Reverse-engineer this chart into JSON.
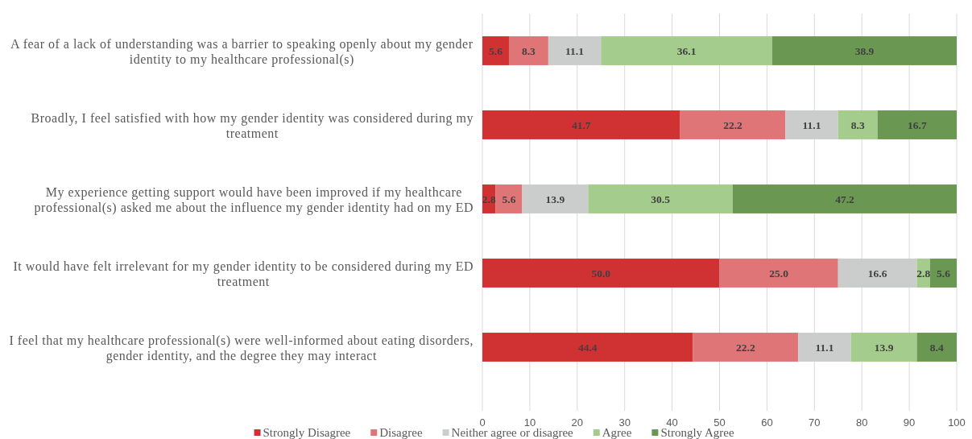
{
  "chart_data": {
    "type": "bar",
    "orientation": "horizontal",
    "stacked": true,
    "categories": [
      "A fear of a lack of understanding was a barrier to speaking openly about my gender identity to my healthcare professional(s)",
      "Broadly, I feel satisfied with how my gender identity was considered during my treatment",
      "My experience getting support would have been improved if my healthcare professional(s) asked me about the influence my gender identity had on my ED",
      "It would have felt irrelevant for my gender identity to be considered during my ED treatment",
      "I feel that my healthcare professional(s) were well-informed about eating disorders, gender identity, and the degree they may interact"
    ],
    "series": [
      {
        "name": "Strongly Disagree",
        "color": "#d03234",
        "values": [
          5.6,
          41.7,
          2.8,
          50.0,
          44.4
        ],
        "value_labels": [
          "5.6",
          "41.7",
          "2.8",
          "50.0",
          "44.4"
        ]
      },
      {
        "name": "Disagree",
        "color": "#e07577",
        "values": [
          8.3,
          22.2,
          5.6,
          25.0,
          22.2
        ],
        "value_labels": [
          "8.3",
          "22.2",
          "5.6",
          "25.0",
          "22.2"
        ]
      },
      {
        "name": "Neither agree or disagree",
        "color": "#cbcdcd",
        "values": [
          11.1,
          11.1,
          13.9,
          16.6,
          11.1
        ],
        "value_labels": [
          "11.1",
          "11.1",
          "13.9",
          "16.6",
          "11.1"
        ]
      },
      {
        "name": "Agree",
        "color": "#a3cc8d",
        "values": [
          36.1,
          8.3,
          30.5,
          2.8,
          13.9
        ],
        "value_labels": [
          "36.1",
          "8.3",
          "30.5",
          "2.8",
          "13.9"
        ]
      },
      {
        "name": "Strongly Agree",
        "color": "#6a9853",
        "values": [
          38.9,
          16.7,
          47.2,
          5.6,
          8.4
        ],
        "value_labels": [
          "38.9",
          "16.7",
          "47.2",
          "5.6",
          "8.4"
        ]
      }
    ],
    "xlim": [
      0,
      100
    ],
    "xticks": [
      0,
      10,
      20,
      30,
      40,
      50,
      60,
      70,
      80,
      90,
      100
    ],
    "grid": "x",
    "legend": "bottom"
  }
}
